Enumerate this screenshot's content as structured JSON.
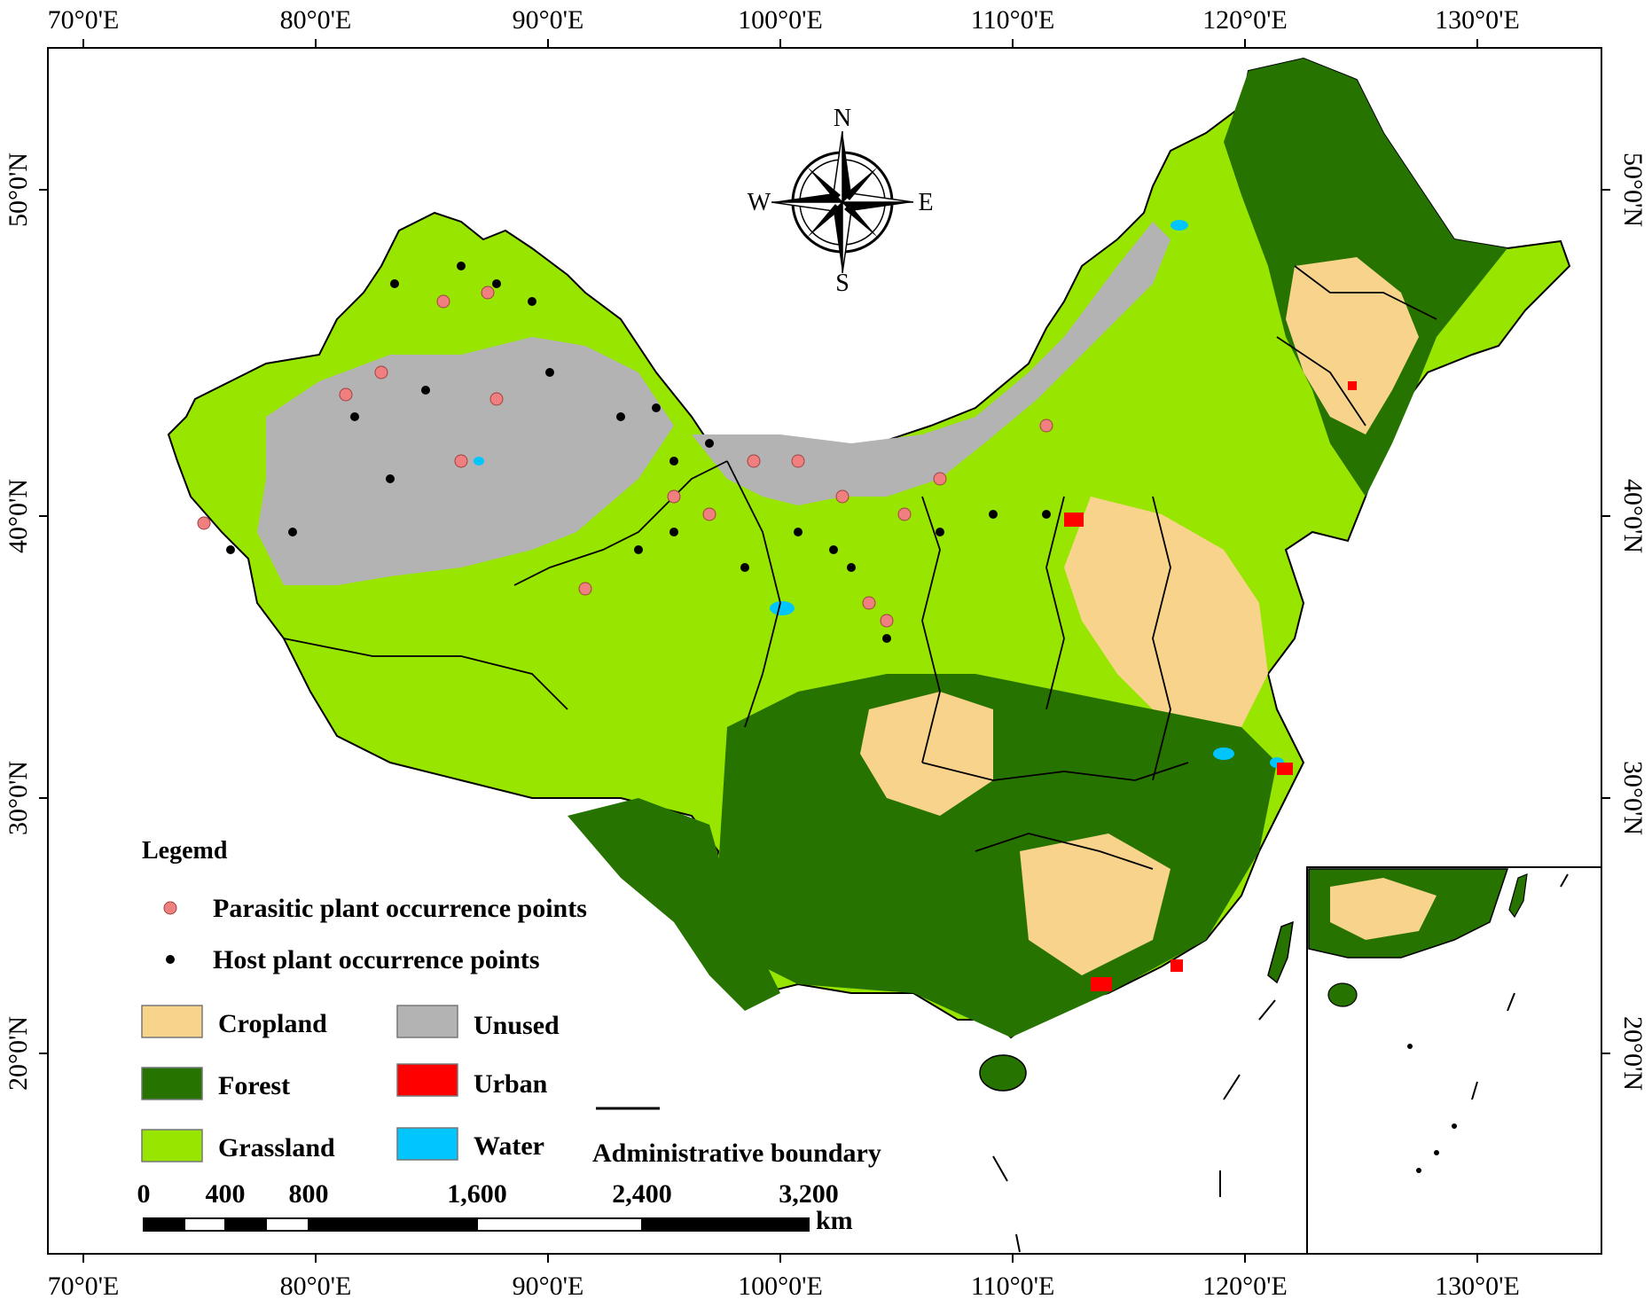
{
  "map": {
    "longitude_ticks": [
      "70°0'E",
      "80°0'E",
      "90°0'E",
      "100°0'E",
      "110°0'E",
      "120°0'E",
      "130°0'E"
    ],
    "latitude_ticks": [
      "50°0'N",
      "40°0'N",
      "30°0'N",
      "20°0'N"
    ],
    "compass": {
      "north": "N",
      "south": "S",
      "east": "E",
      "west": "W"
    },
    "legend": {
      "title": "Legemd",
      "points": [
        {
          "label": "Parasitic plant occurrence points",
          "color": "#f08080"
        },
        {
          "label": "Host plant occurrence points",
          "color": "#000000"
        }
      ],
      "land_use": [
        {
          "label": "Cropland",
          "color": "#f8d38c"
        },
        {
          "label": "Unused",
          "color": "#b3b3b3"
        },
        {
          "label": "Forest",
          "color": "#267300"
        },
        {
          "label": "Urban",
          "color": "#ff0000"
        },
        {
          "label": "Grassland",
          "color": "#98e600"
        },
        {
          "label": "Water",
          "color": "#00c5ff"
        }
      ],
      "boundary": {
        "label": "Administrative boundary"
      }
    },
    "scale_bar": {
      "labels": [
        "0",
        "400",
        "800",
        "1,600",
        "2,400",
        "3,200"
      ],
      "unit": "km"
    }
  }
}
